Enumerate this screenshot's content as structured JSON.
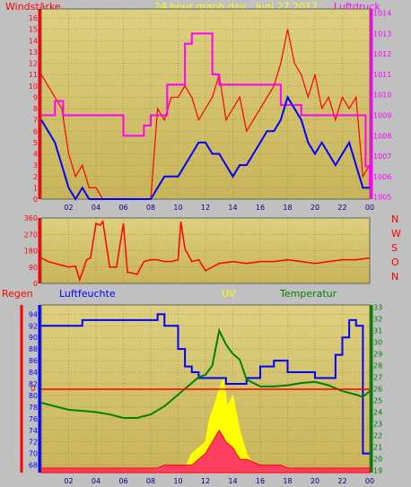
{
  "top": {
    "left_title": "Windstärke",
    "center_title": "24 hour graph day : Juni 27 2017",
    "right_title": "Luftdruck",
    "title_colors": {
      "left": "#ff0000",
      "center": "#ffff00",
      "right": "#ff00ff"
    }
  },
  "bottom": {
    "left_title": "Regen",
    "humidity_title": "Luftfeuchte",
    "uv_title": "UV",
    "temp_title": "Temperatur",
    "zero_label": "0",
    "title_colors": {
      "regen": "#ff0000",
      "humidity": "#0000ff",
      "uv": "#ffff00",
      "temp": "#008000"
    }
  },
  "compass": [
    "N",
    "W",
    "S",
    "O",
    "N"
  ],
  "compass_color": "#ff0000",
  "x_ticks": [
    "02",
    "04",
    "06",
    "08",
    "10",
    "12",
    "14",
    "16",
    "18",
    "20",
    "22",
    "00"
  ],
  "chart_data": [
    {
      "type": "line",
      "x_ticks": [
        "02",
        "04",
        "06",
        "08",
        "10",
        "12",
        "14",
        "16",
        "18",
        "20",
        "22",
        "00"
      ],
      "y_left_ticks": [
        "0",
        "1",
        "2",
        "3",
        "4",
        "5",
        "6",
        "7",
        "8",
        "9",
        "10",
        "11",
        "12",
        "13",
        "14",
        "15",
        "16"
      ],
      "y_right_ticks": [
        "1005",
        "1006",
        "1007",
        "1008",
        "1009",
        "1010",
        "1011",
        "1012",
        "1013",
        "1014"
      ],
      "ylim_left": [
        0,
        16.8
      ],
      "ylim_right": [
        1004.9,
        1014.2
      ],
      "series": [
        {
          "name": "Windstärke",
          "color": "#ff0000",
          "axis": "left",
          "x": [
            0,
            0.5,
            1,
            1.5,
            2,
            2.5,
            3,
            3.5,
            4,
            4.5,
            5,
            5.5,
            6,
            6.5,
            7,
            7.5,
            8,
            8.5,
            9,
            9.5,
            10,
            10.5,
            11,
            11.5,
            12,
            12.5,
            13,
            13.5,
            14,
            14.5,
            15,
            15.5,
            16,
            16.5,
            17,
            17.5,
            18,
            18.5,
            19,
            19.5,
            20,
            20.5,
            21,
            21.5,
            22,
            22.5,
            23,
            23.5,
            24
          ],
          "values": [
            11,
            10,
            9,
            8,
            4,
            2,
            3,
            1,
            1,
            0,
            0,
            0,
            0,
            0,
            0,
            0,
            0,
            8,
            7,
            9,
            9,
            10,
            9,
            7,
            8,
            9,
            11,
            7,
            8,
            9,
            6,
            7,
            8,
            9,
            10,
            12,
            15,
            12,
            11,
            9,
            11,
            8,
            9,
            7,
            9,
            8,
            9,
            2,
            3
          ]
        },
        {
          "name": "Luftdruck",
          "color": "#ff00ff",
          "axis": "right",
          "x": [
            0,
            0.5,
            1,
            1.4,
            1.6,
            2,
            3,
            4,
            5,
            6,
            7,
            7.3,
            7.5,
            8,
            9,
            9.2,
            10,
            10.5,
            11,
            11.5,
            12,
            12.5,
            13,
            14,
            15,
            16,
            17,
            17.5,
            18,
            19,
            20,
            21,
            22,
            23,
            23.7,
            24
          ],
          "values": [
            1009,
            1009,
            1009.7,
            1009.7,
            1009,
            1009,
            1009,
            1009,
            1009,
            1008,
            1008,
            1008,
            1008.5,
            1009,
            1009,
            1010.5,
            1010.5,
            1012.5,
            1013,
            1013,
            1013,
            1011,
            1010.5,
            1010.5,
            1010.5,
            1010.5,
            1010.5,
            1009.5,
            1009.5,
            1009,
            1009,
            1009,
            1009,
            1009,
            1006.5,
            1005.5
          ]
        },
        {
          "name": "",
          "color": "#0000ff",
          "axis": "left",
          "x": [
            0,
            0.5,
            1,
            1.5,
            2,
            2.5,
            3,
            3.5,
            4,
            4.5,
            5,
            5.5,
            6,
            6.5,
            7,
            7.5,
            8,
            8.5,
            9,
            9.5,
            10,
            10.5,
            11,
            11.5,
            12,
            12.5,
            13,
            13.5,
            14,
            14.5,
            15,
            15.5,
            16,
            16.5,
            17,
            17.5,
            18,
            18.5,
            19,
            19.5,
            20,
            20.5,
            21,
            21.5,
            22,
            22.5,
            23,
            23.5,
            24
          ],
          "values": [
            7,
            6,
            5,
            3,
            1,
            0,
            1,
            0,
            0,
            0,
            0,
            0,
            0,
            0,
            0,
            0,
            0,
            1,
            2,
            2,
            2,
            3,
            4,
            5,
            5,
            4,
            4,
            3,
            2,
            3,
            3,
            4,
            5,
            6,
            6,
            7,
            9,
            8,
            7,
            5,
            4,
            5,
            4,
            3,
            4,
            5,
            3,
            1,
            1
          ]
        }
      ]
    },
    {
      "type": "line",
      "title": "",
      "y_ticks": [
        "0",
        "90",
        "180",
        "270",
        "360"
      ],
      "ylim": [
        0,
        360
      ],
      "series": [
        {
          "name": "",
          "color": "#ff0000",
          "x": [
            0,
            0.5,
            1,
            1.5,
            2,
            2.5,
            2.8,
            3,
            3.3,
            3.6,
            4,
            4.3,
            4.5,
            5,
            5.5,
            6,
            6.3,
            6.5,
            7,
            7.5,
            8,
            8.5,
            9,
            9.5,
            10,
            10.2,
            10.5,
            11,
            11.5,
            12,
            12.5,
            13,
            14,
            15,
            16,
            17,
            18,
            19,
            20,
            21,
            22,
            23,
            24
          ],
          "values": [
            140,
            120,
            110,
            100,
            90,
            95,
            20,
            60,
            130,
            140,
            330,
            320,
            340,
            90,
            90,
            330,
            60,
            60,
            50,
            120,
            130,
            130,
            120,
            120,
            130,
            340,
            190,
            120,
            130,
            70,
            90,
            110,
            120,
            110,
            120,
            120,
            130,
            120,
            110,
            120,
            130,
            130,
            140
          ]
        }
      ]
    },
    {
      "type": "line",
      "y_left_ticks": [
        "68",
        "70",
        "72",
        "74",
        "76",
        "78",
        "80",
        "82",
        "84",
        "86",
        "88",
        "90",
        "92",
        "94"
      ],
      "y_right_ticks": [
        "19",
        "20",
        "21",
        "22",
        "23",
        "24",
        "25",
        "26",
        "27",
        "28",
        "29",
        "30",
        "31",
        "32",
        "33"
      ],
      "ylim_left": [
        66.7,
        95.6
      ],
      "ylim_right": [
        18.8,
        33.2
      ],
      "series": [
        {
          "name": "Luftfeuchte",
          "color": "#0000ff",
          "axis": "left",
          "x": [
            0,
            1,
            2,
            3,
            4,
            5,
            6,
            7,
            8,
            8.5,
            9,
            10,
            10.5,
            11,
            11.5,
            12,
            12.5,
            13,
            13.5,
            14,
            15,
            16,
            17,
            18,
            19,
            20,
            21,
            21.5,
            22,
            22.5,
            23,
            23.5,
            24
          ],
          "values": [
            92,
            92,
            92,
            93,
            93,
            93,
            93,
            93,
            93,
            94,
            92,
            88,
            85,
            84,
            83,
            83,
            83,
            83,
            82,
            82,
            83,
            85,
            86,
            84,
            84,
            83,
            83,
            87,
            90,
            93,
            92,
            70,
            70
          ]
        },
        {
          "name": "Temperatur",
          "color": "#008000",
          "axis": "right",
          "x": [
            0,
            1,
            2,
            3,
            4,
            5,
            6,
            7,
            8,
            9,
            10,
            11,
            11.5,
            12,
            12.5,
            13,
            13.5,
            14,
            14.5,
            15,
            16,
            17,
            18,
            19,
            20,
            21,
            22,
            23,
            23.5,
            24
          ],
          "values": [
            24.8,
            24.5,
            24.2,
            24.1,
            24.0,
            23.8,
            23.5,
            23.5,
            23.8,
            24.5,
            25.5,
            26.5,
            27.0,
            27.2,
            28.0,
            31.0,
            29.8,
            29.0,
            28.5,
            26.8,
            26.2,
            26.2,
            26.3,
            26.5,
            26.6,
            26.3,
            25.8,
            25.5,
            25.3,
            25.8
          ]
        },
        {
          "name": "UV",
          "color": "#ffff00",
          "axis": "left",
          "x": [
            0,
            10.5,
            11,
            11.5,
            12,
            12.3,
            12.6,
            13,
            13.3,
            13.6,
            14,
            14.5,
            15,
            15.5,
            16,
            24
          ],
          "values": [
            67.5,
            67.5,
            70,
            71,
            72,
            76,
            78,
            81,
            83,
            78,
            80,
            74,
            70,
            68,
            67.5,
            67.5
          ]
        },
        {
          "name": "Regen",
          "color": "#ff0000",
          "axis": "left",
          "x": [
            0,
            8.5,
            9,
            11,
            11.5,
            12,
            12.5,
            13,
            13.5,
            14,
            14.5,
            15,
            16,
            17.5,
            18,
            24
          ],
          "values": [
            67.5,
            67.5,
            68,
            68,
            69,
            70,
            72,
            74,
            72,
            71,
            69,
            69,
            68,
            68,
            67.5,
            67.5
          ]
        }
      ]
    }
  ]
}
